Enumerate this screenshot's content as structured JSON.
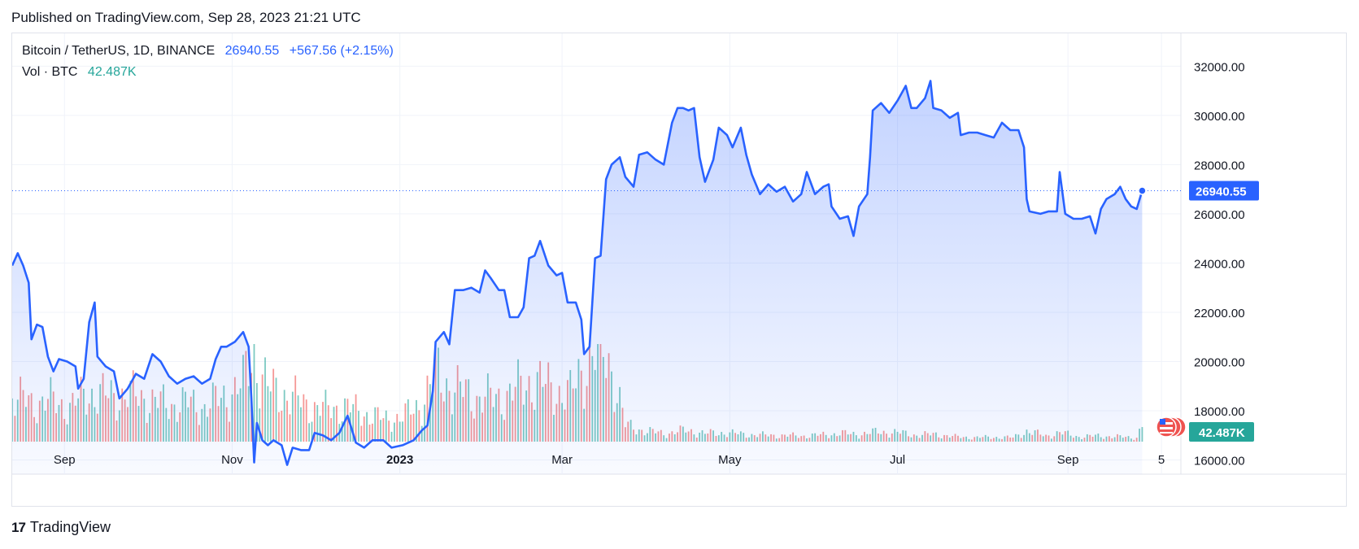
{
  "header": {
    "published": "Published on TradingView.com, Sep 28, 2023 21:21 UTC"
  },
  "legend": {
    "symbol": "Bitcoin / TetherUS, 1D, BINANCE",
    "last": "26940.55",
    "change": "+567.56 (+2.15%)",
    "volume_label": "Vol · BTC",
    "volume_value": "42.487K"
  },
  "footer": {
    "brand": "TradingView",
    "logo_text": "17"
  },
  "colors": {
    "line": "#2962ff",
    "vol_up": "#26a69a",
    "vol_down": "#ef5350",
    "badge": "#2962ff",
    "vol_badge": "#26a69a"
  },
  "chart_data": {
    "type": "area",
    "title": "Bitcoin / TetherUS, 1D, BINANCE",
    "xlabel": "",
    "ylabel": "",
    "ylim": [
      14200,
      33300
    ],
    "y_ticks": [
      "16000.00",
      "18000.00",
      "20000.00",
      "22000.00",
      "24000.00",
      "26000.00",
      "28000.00",
      "30000.00",
      "32000.00"
    ],
    "x_ticks": [
      {
        "label": "Sep",
        "date": "2022-09-01"
      },
      {
        "label": "Nov",
        "date": "2022-11-01"
      },
      {
        "label": "2023",
        "date": "2023-01-01"
      },
      {
        "label": "Mar",
        "date": "2023-03-01"
      },
      {
        "label": "May",
        "date": "2023-05-01"
      },
      {
        "label": "Jul",
        "date": "2023-07-01"
      },
      {
        "label": "Sep",
        "date": "2023-09-01"
      },
      {
        "label": "5",
        "date": "2023-10-05"
      }
    ],
    "x_range": [
      "2022-08-13",
      "2023-10-10"
    ],
    "last_price_label": "26940.55",
    "volume_label": "42.487K",
    "series": [
      {
        "name": "Bitcoin / TetherUS",
        "points": [
          [
            "2022-08-13",
            23900
          ],
          [
            "2022-08-15",
            24400
          ],
          [
            "2022-08-17",
            23900
          ],
          [
            "2022-08-19",
            23200
          ],
          [
            "2022-08-20",
            20900
          ],
          [
            "2022-08-22",
            21500
          ],
          [
            "2022-08-24",
            21400
          ],
          [
            "2022-08-26",
            20200
          ],
          [
            "2022-08-28",
            19600
          ],
          [
            "2022-08-30",
            20100
          ],
          [
            "2022-09-02",
            20000
          ],
          [
            "2022-09-05",
            19800
          ],
          [
            "2022-09-06",
            18900
          ],
          [
            "2022-09-08",
            19300
          ],
          [
            "2022-09-10",
            21600
          ],
          [
            "2022-09-12",
            22400
          ],
          [
            "2022-09-13",
            20200
          ],
          [
            "2022-09-16",
            19800
          ],
          [
            "2022-09-19",
            19600
          ],
          [
            "2022-09-21",
            18500
          ],
          [
            "2022-09-24",
            18900
          ],
          [
            "2022-09-27",
            19500
          ],
          [
            "2022-09-30",
            19300
          ],
          [
            "2022-10-03",
            20300
          ],
          [
            "2022-10-06",
            20000
          ],
          [
            "2022-10-09",
            19400
          ],
          [
            "2022-10-12",
            19100
          ],
          [
            "2022-10-15",
            19300
          ],
          [
            "2022-10-18",
            19400
          ],
          [
            "2022-10-21",
            19100
          ],
          [
            "2022-10-24",
            19300
          ],
          [
            "2022-10-26",
            20100
          ],
          [
            "2022-10-28",
            20600
          ],
          [
            "2022-10-30",
            20600
          ],
          [
            "2022-11-02",
            20800
          ],
          [
            "2022-11-05",
            21200
          ],
          [
            "2022-11-07",
            20600
          ],
          [
            "2022-11-08",
            18500
          ],
          [
            "2022-11-09",
            15900
          ],
          [
            "2022-11-10",
            17500
          ],
          [
            "2022-11-12",
            16800
          ],
          [
            "2022-11-14",
            16600
          ],
          [
            "2022-11-16",
            16800
          ],
          [
            "2022-11-19",
            16600
          ],
          [
            "2022-11-21",
            15800
          ],
          [
            "2022-11-23",
            16500
          ],
          [
            "2022-11-26",
            16400
          ],
          [
            "2022-11-29",
            16400
          ],
          [
            "2022-12-01",
            17100
          ],
          [
            "2022-12-04",
            17000
          ],
          [
            "2022-12-07",
            16800
          ],
          [
            "2022-12-10",
            17100
          ],
          [
            "2022-12-13",
            17800
          ],
          [
            "2022-12-16",
            16700
          ],
          [
            "2022-12-19",
            16500
          ],
          [
            "2022-12-22",
            16800
          ],
          [
            "2022-12-26",
            16800
          ],
          [
            "2022-12-29",
            16500
          ],
          [
            "2023-01-02",
            16600
          ],
          [
            "2023-01-06",
            16800
          ],
          [
            "2023-01-09",
            17200
          ],
          [
            "2023-01-11",
            17400
          ],
          [
            "2023-01-13",
            18800
          ],
          [
            "2023-01-14",
            20800
          ],
          [
            "2023-01-17",
            21200
          ],
          [
            "2023-01-19",
            20700
          ],
          [
            "2023-01-21",
            22900
          ],
          [
            "2023-01-24",
            22900
          ],
          [
            "2023-01-27",
            23000
          ],
          [
            "2023-01-30",
            22800
          ],
          [
            "2023-02-01",
            23700
          ],
          [
            "2023-02-03",
            23400
          ],
          [
            "2023-02-06",
            22900
          ],
          [
            "2023-02-08",
            22900
          ],
          [
            "2023-02-10",
            21800
          ],
          [
            "2023-02-13",
            21800
          ],
          [
            "2023-02-15",
            22200
          ],
          [
            "2023-02-17",
            24200
          ],
          [
            "2023-02-19",
            24300
          ],
          [
            "2023-02-21",
            24900
          ],
          [
            "2023-02-24",
            23900
          ],
          [
            "2023-02-27",
            23500
          ],
          [
            "2023-03-01",
            23600
          ],
          [
            "2023-03-03",
            22400
          ],
          [
            "2023-03-06",
            22400
          ],
          [
            "2023-03-08",
            21700
          ],
          [
            "2023-03-09",
            20300
          ],
          [
            "2023-03-11",
            20600
          ],
          [
            "2023-03-13",
            24200
          ],
          [
            "2023-03-15",
            24300
          ],
          [
            "2023-03-17",
            27400
          ],
          [
            "2023-03-19",
            28000
          ],
          [
            "2023-03-22",
            28300
          ],
          [
            "2023-03-24",
            27500
          ],
          [
            "2023-03-27",
            27100
          ],
          [
            "2023-03-29",
            28400
          ],
          [
            "2023-04-01",
            28500
          ],
          [
            "2023-04-04",
            28200
          ],
          [
            "2023-04-07",
            28000
          ],
          [
            "2023-04-10",
            29700
          ],
          [
            "2023-04-12",
            30300
          ],
          [
            "2023-04-14",
            30300
          ],
          [
            "2023-04-16",
            30200
          ],
          [
            "2023-04-18",
            30300
          ],
          [
            "2023-04-20",
            28300
          ],
          [
            "2023-04-22",
            27300
          ],
          [
            "2023-04-25",
            28200
          ],
          [
            "2023-04-27",
            29500
          ],
          [
            "2023-04-30",
            29200
          ],
          [
            "2023-05-02",
            28700
          ],
          [
            "2023-05-05",
            29500
          ],
          [
            "2023-05-07",
            28400
          ],
          [
            "2023-05-09",
            27600
          ],
          [
            "2023-05-12",
            26800
          ],
          [
            "2023-05-15",
            27200
          ],
          [
            "2023-05-18",
            26900
          ],
          [
            "2023-05-21",
            27100
          ],
          [
            "2023-05-24",
            26500
          ],
          [
            "2023-05-27",
            26800
          ],
          [
            "2023-05-29",
            27700
          ],
          [
            "2023-06-01",
            26800
          ],
          [
            "2023-06-04",
            27100
          ],
          [
            "2023-06-06",
            27200
          ],
          [
            "2023-06-07",
            26300
          ],
          [
            "2023-06-10",
            25800
          ],
          [
            "2023-06-13",
            25900
          ],
          [
            "2023-06-15",
            25100
          ],
          [
            "2023-06-17",
            26300
          ],
          [
            "2023-06-20",
            26800
          ],
          [
            "2023-06-21",
            28300
          ],
          [
            "2023-06-22",
            30200
          ],
          [
            "2023-06-25",
            30500
          ],
          [
            "2023-06-28",
            30100
          ],
          [
            "2023-07-01",
            30600
          ],
          [
            "2023-07-04",
            31200
          ],
          [
            "2023-07-06",
            30300
          ],
          [
            "2023-07-08",
            30300
          ],
          [
            "2023-07-11",
            30700
          ],
          [
            "2023-07-13",
            31400
          ],
          [
            "2023-07-14",
            30300
          ],
          [
            "2023-07-17",
            30200
          ],
          [
            "2023-07-20",
            29900
          ],
          [
            "2023-07-23",
            30100
          ],
          [
            "2023-07-24",
            29200
          ],
          [
            "2023-07-27",
            29300
          ],
          [
            "2023-07-30",
            29300
          ],
          [
            "2023-08-02",
            29200
          ],
          [
            "2023-08-05",
            29100
          ],
          [
            "2023-08-08",
            29700
          ],
          [
            "2023-08-11",
            29400
          ],
          [
            "2023-08-14",
            29400
          ],
          [
            "2023-08-16",
            28700
          ],
          [
            "2023-08-17",
            26600
          ],
          [
            "2023-08-18",
            26100
          ],
          [
            "2023-08-22",
            26000
          ],
          [
            "2023-08-25",
            26100
          ],
          [
            "2023-08-28",
            26100
          ],
          [
            "2023-08-29",
            27700
          ],
          [
            "2023-08-31",
            26000
          ],
          [
            "2023-09-03",
            25800
          ],
          [
            "2023-09-06",
            25800
          ],
          [
            "2023-09-09",
            25900
          ],
          [
            "2023-09-11",
            25200
          ],
          [
            "2023-09-13",
            26200
          ],
          [
            "2023-09-15",
            26600
          ],
          [
            "2023-09-18",
            26800
          ],
          [
            "2023-09-20",
            27100
          ],
          [
            "2023-09-22",
            26600
          ],
          [
            "2023-09-24",
            26300
          ],
          [
            "2023-09-26",
            26200
          ],
          [
            "2023-09-28",
            26940
          ]
        ]
      }
    ],
    "volume": {
      "name": "Vol · BTC",
      "unit": "K BTC",
      "points": [
        [
          "2022-08-13",
          110,
          1
        ],
        [
          "2022-08-20",
          95,
          0
        ],
        [
          "2022-08-27",
          100,
          0
        ],
        [
          "2022-09-03",
          85,
          1
        ],
        [
          "2022-09-10",
          120,
          1
        ],
        [
          "2022-09-17",
          110,
          0
        ],
        [
          "2022-09-24",
          115,
          1
        ],
        [
          "2022-10-01",
          105,
          0
        ],
        [
          "2022-10-08",
          90,
          1
        ],
        [
          "2022-10-15",
          95,
          0
        ],
        [
          "2022-10-22",
          85,
          1
        ],
        [
          "2022-10-29",
          110,
          0
        ],
        [
          "2022-11-05",
          140,
          1
        ],
        [
          "2022-11-08",
          210,
          0
        ],
        [
          "2022-11-09",
          230,
          0
        ],
        [
          "2022-11-10",
          190,
          1
        ],
        [
          "2022-11-14",
          130,
          0
        ],
        [
          "2022-11-21",
          115,
          0
        ],
        [
          "2022-11-28",
          90,
          1
        ],
        [
          "2022-12-05",
          80,
          1
        ],
        [
          "2022-12-12",
          85,
          0
        ],
        [
          "2022-12-19",
          70,
          0
        ],
        [
          "2022-12-26",
          55,
          1
        ],
        [
          "2023-01-02",
          60,
          1
        ],
        [
          "2023-01-09",
          95,
          1
        ],
        [
          "2023-01-14",
          165,
          1
        ],
        [
          "2023-01-21",
          130,
          1
        ],
        [
          "2023-01-28",
          110,
          0
        ],
        [
          "2023-02-04",
          105,
          0
        ],
        [
          "2023-02-11",
          120,
          0
        ],
        [
          "2023-02-18",
          150,
          1
        ],
        [
          "2023-02-25",
          130,
          0
        ],
        [
          "2023-03-04",
          115,
          0
        ],
        [
          "2023-03-10",
          200,
          0
        ],
        [
          "2023-03-13",
          220,
          1
        ],
        [
          "2023-03-17",
          215,
          1
        ],
        [
          "2023-03-20",
          160,
          1
        ],
        [
          "2023-03-24",
          40,
          0
        ],
        [
          "2023-04-01",
          25,
          1
        ],
        [
          "2023-04-08",
          20,
          0
        ],
        [
          "2023-04-15",
          28,
          1
        ],
        [
          "2023-04-22",
          20,
          0
        ],
        [
          "2023-04-29",
          22,
          1
        ],
        [
          "2023-05-06",
          18,
          0
        ],
        [
          "2023-05-13",
          16,
          1
        ],
        [
          "2023-05-20",
          15,
          0
        ],
        [
          "2023-05-27",
          14,
          1
        ],
        [
          "2023-06-03",
          16,
          0
        ],
        [
          "2023-06-10",
          20,
          0
        ],
        [
          "2023-06-17",
          18,
          1
        ],
        [
          "2023-06-24",
          24,
          1
        ],
        [
          "2023-07-01",
          22,
          1
        ],
        [
          "2023-07-08",
          16,
          0
        ],
        [
          "2023-07-15",
          18,
          1
        ],
        [
          "2023-07-22",
          12,
          0
        ],
        [
          "2023-07-29",
          10,
          1
        ],
        [
          "2023-08-05",
          11,
          0
        ],
        [
          "2023-08-12",
          10,
          1
        ],
        [
          "2023-08-17",
          26,
          0
        ],
        [
          "2023-08-24",
          14,
          0
        ],
        [
          "2023-08-29",
          22,
          1
        ],
        [
          "2023-09-05",
          12,
          0
        ],
        [
          "2023-09-12",
          14,
          1
        ],
        [
          "2023-09-19",
          12,
          1
        ],
        [
          "2023-09-26",
          10,
          0
        ],
        [
          "2023-09-28",
          42.487,
          1
        ]
      ]
    }
  }
}
